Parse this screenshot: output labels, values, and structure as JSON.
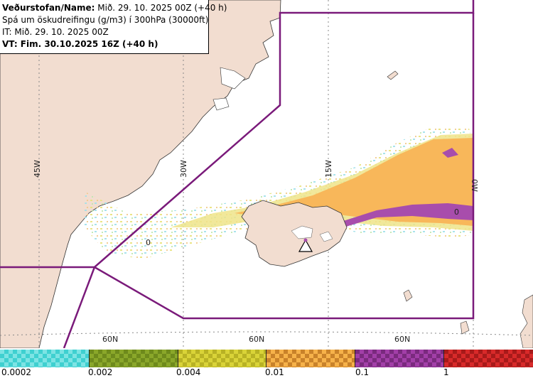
{
  "header": {
    "line1_bold": "Veðurstofan/Name:",
    "line1_rest": " Mið. 29. 10. 2025 00Z (+40 h)",
    "line2": "Spá um öskudreifingu (g/m3) í 300hPa (30000ft)",
    "line3": "IT: Mið. 29. 10. 2025 00Z",
    "line4": "VT: Fim. 30.10.2025 16Z (+40 h)"
  },
  "grid_labels": {
    "lon_45w": "45W",
    "lon_30w": "30W",
    "lon_15w": "15W",
    "lon_0w": "0W",
    "lat_a": "60N",
    "lat_b": "60N",
    "lat_c": "60N"
  },
  "map_markers": {
    "contour_a": "0",
    "contour_b": "0"
  },
  "colors": {
    "land": "#f2ddd0",
    "sea": "#ffffff",
    "boundary": "#7a1a7a",
    "grid": "#888888",
    "level_cyan": "#3fd0d0",
    "level_olive": "#8aa72a",
    "level_yellow": "#d9d338",
    "level_orange": "#f6b24a",
    "level_purple": "#a23fa8",
    "level_red": "#d82a2a"
  },
  "legend": {
    "ticks": [
      "0.0002",
      "0.002",
      "0.004",
      "0.01",
      "0.1",
      "1"
    ]
  }
}
